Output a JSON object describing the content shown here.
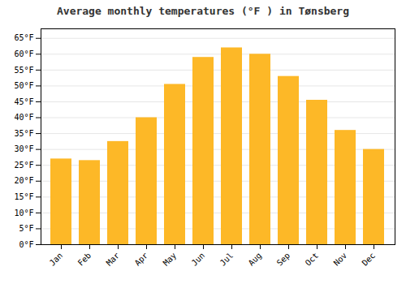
{
  "chart_data": {
    "type": "bar",
    "title": "Average monthly temperatures (°F ) in Tønsberg",
    "categories": [
      "Jan",
      "Feb",
      "Mar",
      "Apr",
      "May",
      "Jun",
      "Jul",
      "Aug",
      "Sep",
      "Oct",
      "Nov",
      "Dec"
    ],
    "values": [
      27,
      26.5,
      32.5,
      40,
      50.5,
      59,
      62,
      60,
      53,
      45.5,
      36,
      30
    ],
    "color": "#FDB827",
    "ylim": [
      0,
      68
    ],
    "yticks": [
      {
        "value": 0,
        "label": "0°F"
      },
      {
        "value": 5,
        "label": "5°F"
      },
      {
        "value": 10,
        "label": "10°F"
      },
      {
        "value": 15,
        "label": "15°F"
      },
      {
        "value": 20,
        "label": "20°F"
      },
      {
        "value": 25,
        "label": "25°F"
      },
      {
        "value": 30,
        "label": "30°F"
      },
      {
        "value": 35,
        "label": "35°F"
      },
      {
        "value": 40,
        "label": "40°F"
      },
      {
        "value": 45,
        "label": "45°F"
      },
      {
        "value": 50,
        "label": "50°F"
      },
      {
        "value": 55,
        "label": "55°F"
      },
      {
        "value": 60,
        "label": "60°F"
      },
      {
        "value": 65,
        "label": "65°F"
      }
    ],
    "grid": true
  }
}
